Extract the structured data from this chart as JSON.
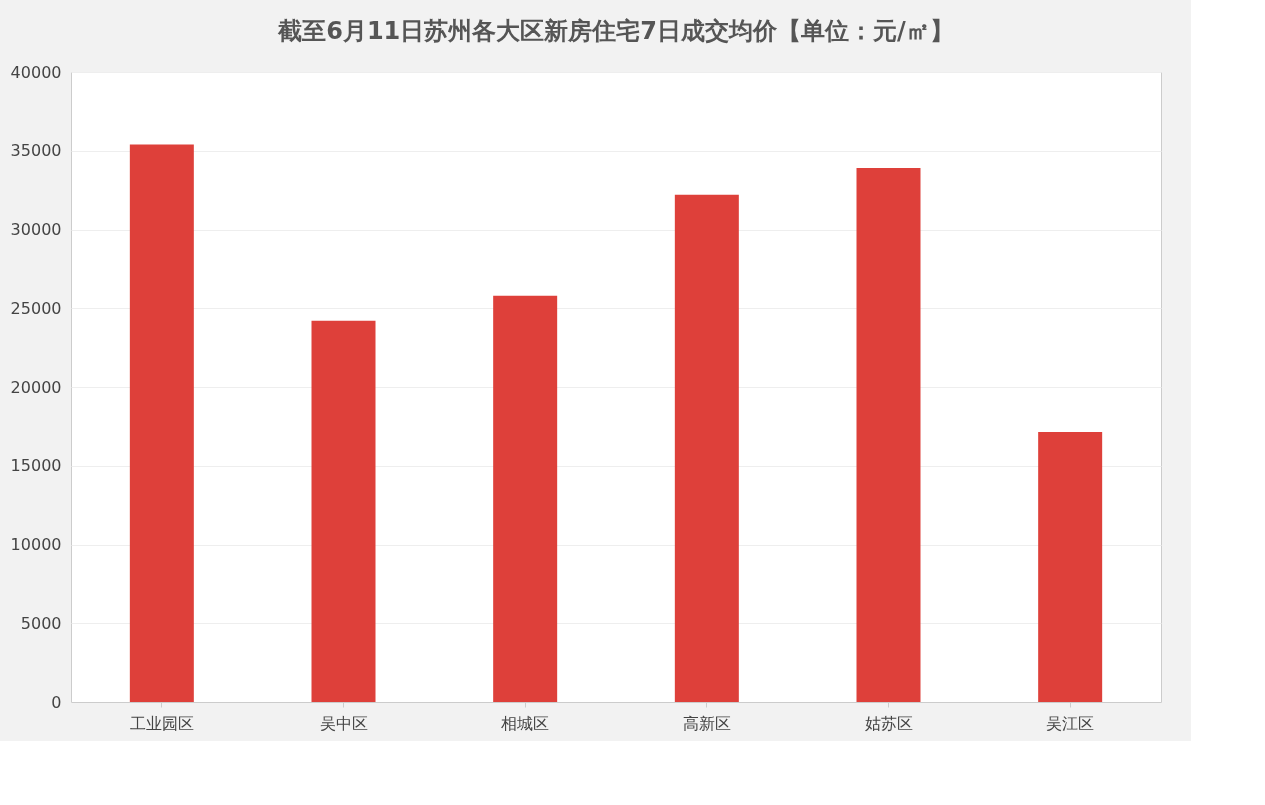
{
  "chart_data": {
    "type": "bar",
    "title": "截至6月11日苏州各大区新房住宅7日成交均价【单位：元/㎡】",
    "categories": [
      "工业园区",
      "吴中区",
      "相城区",
      "高新区",
      "姑苏区",
      "吴江区"
    ],
    "series": [
      {
        "color": "#de403a",
        "values": [
          35400,
          24200,
          25800,
          32200,
          33900,
          17150
        ]
      }
    ],
    "ylim": [
      0,
      40000
    ],
    "yticks": [
      0,
      5000,
      10000,
      15000,
      20000,
      25000,
      30000,
      35000,
      40000
    ],
    "grid": "y",
    "legend": false
  }
}
